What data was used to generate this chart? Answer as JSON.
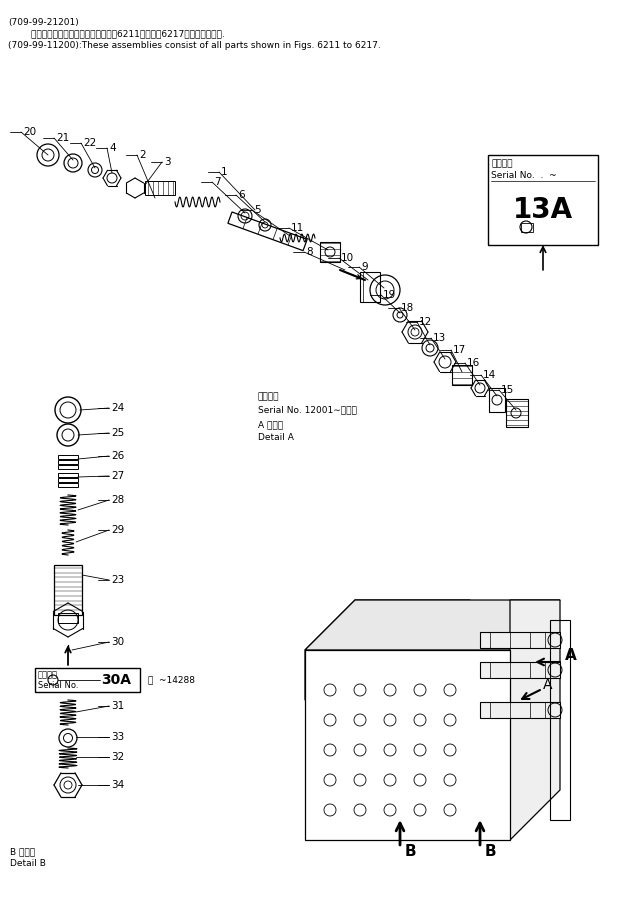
{
  "bg_color": "#ffffff",
  "header_line1": "(709-99-21201)",
  "header_line2_jp": "        これらのアセンブリの構成部品は第6211図から第6217図まで含みます.",
  "header_line3": "(709-99-11200):These assemblies consist of all parts shown in Figs. 6211 to 6217.",
  "serial1_jp": "適用号機",
  "serial1_en": "Serial No.",
  "serial1_suffix": "  .  ~",
  "serial1_content": "13A",
  "serial2_jp": "適用号機",
  "serial2_en": "Serial No. 12001∼・・・",
  "detail_a_jp": "A 詳細図",
  "detail_a_en": "Detail A",
  "serial3_jp": "適用号機",
  "serial3_en": "Serial No.",
  "serial3_note": " ・  ~14288",
  "serial3_content": "30A",
  "detail_b_jp": "B 詳細図",
  "detail_b_en": "Detail B"
}
